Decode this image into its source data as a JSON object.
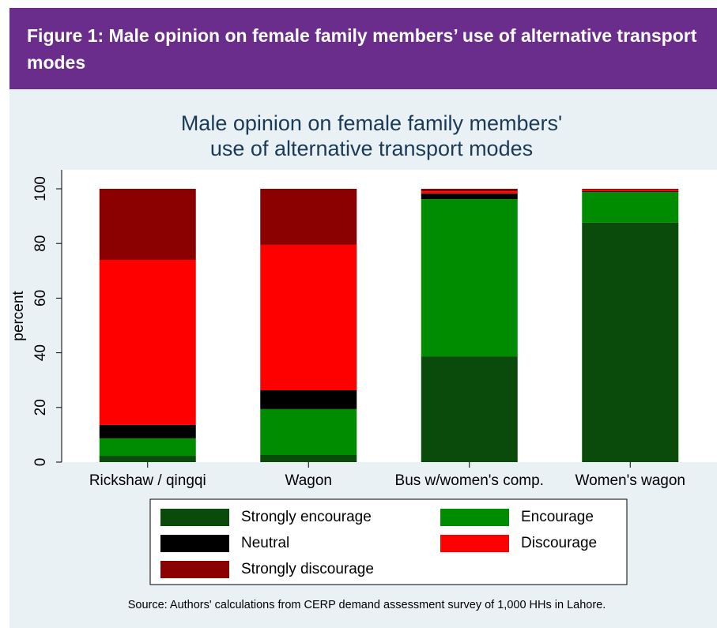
{
  "header": {
    "title": "Figure 1: Male opinion on female family members’ use of alternative transport modes"
  },
  "chart_data": {
    "type": "stacked_bar",
    "title": [
      "Male opinion on female family members'",
      "use of alternative transport modes"
    ],
    "y_label": "percent",
    "categories": [
      "Rickshaw / qingqi",
      "Wagon",
      "Bus w/women's comp.",
      "Women's wagon"
    ],
    "series": [
      {
        "name": "Strongly encourage",
        "color": "#0a4a0a",
        "values": [
          2.3,
          2.6,
          38.7,
          87.6
        ]
      },
      {
        "name": "Encourage",
        "color": "#008c00",
        "values": [
          6.4,
          16.8,
          57.5,
          11.2
        ]
      },
      {
        "name": "Neutral",
        "color": "#000000",
        "values": [
          4.9,
          6.9,
          2.1,
          0.3
        ]
      },
      {
        "name": "Discourage",
        "color": "#ff0000",
        "values": [
          60.4,
          53.2,
          0.8,
          0.6
        ]
      },
      {
        "name": "Strongly discourage",
        "color": "#8b0000",
        "values": [
          26.0,
          20.5,
          0.9,
          0.3
        ]
      }
    ],
    "ylim": [
      0,
      100
    ],
    "yticks": [
      0,
      20,
      40,
      60,
      80,
      100
    ],
    "source": "Source: Authors' calculations from CERP demand assessment survey of 1,000 HHs in Lahore."
  }
}
